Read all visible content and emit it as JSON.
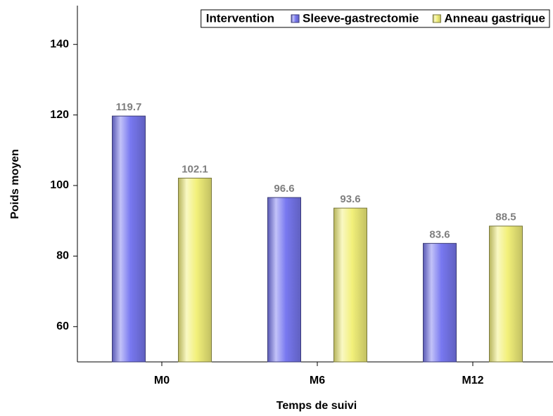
{
  "chart_data": {
    "type": "bar",
    "x_label": "Temps de suivi",
    "y_label": "Poids moyen",
    "legend_title": "Intervention",
    "legend_position": "top-right",
    "categories": [
      "M0",
      "M6",
      "M12"
    ],
    "series": [
      {
        "name": "Sleeve-gastrectomie",
        "color": "#7878f0",
        "values": [
          119.7,
          96.6,
          83.6
        ]
      },
      {
        "name": "Anneau gastrique",
        "color": "#f2f07a",
        "values": [
          102.1,
          93.6,
          88.5
        ]
      }
    ],
    "ylim": [
      50,
      151
    ],
    "yticks": [
      60,
      80,
      100,
      120,
      140
    ],
    "grid": false
  }
}
